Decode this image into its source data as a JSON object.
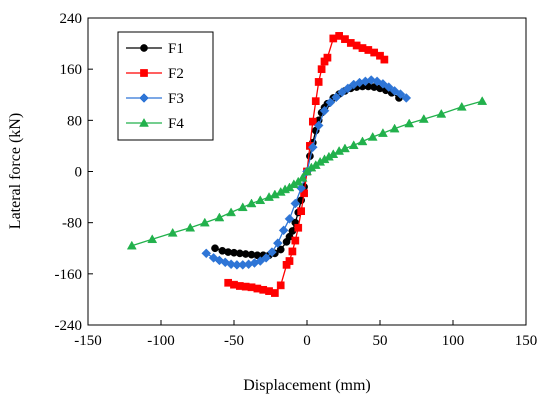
{
  "chart_data": {
    "type": "line",
    "title": "",
    "xlabel": "Displacement (mm)",
    "ylabel": "Lateral force (kN)",
    "xlim": [
      -150,
      150
    ],
    "ylim": [
      -240,
      240
    ],
    "xticks": [
      -150,
      -100,
      -50,
      0,
      50,
      100,
      150
    ],
    "yticks": [
      -240,
      -160,
      -80,
      0,
      80,
      160,
      240
    ],
    "xtick_labels": [
      "-150",
      "-100",
      "-50",
      "0",
      "50",
      "100",
      "150"
    ],
    "ytick_labels": [
      "-240",
      "-160",
      "-80",
      "0",
      "80",
      "160",
      "240"
    ],
    "grid": false,
    "legend_position": "top-left",
    "series": [
      {
        "name": "F1",
        "color": "#000000",
        "marker": "circle",
        "x": [
          -63,
          -58,
          -54,
          -50,
          -46,
          -42,
          -38,
          -34,
          -30,
          -26,
          -22,
          -18,
          -14,
          -12,
          -10,
          -8,
          -6,
          -4,
          -2,
          0,
          2,
          4,
          6,
          8,
          10,
          12,
          14,
          18,
          22,
          26,
          30,
          34,
          38,
          42,
          46,
          50,
          54,
          58,
          63
        ],
        "y": [
          -120,
          -124,
          -126,
          -127,
          -128,
          -129,
          -130,
          -131,
          -131,
          -131,
          -128,
          -122,
          -110,
          -102,
          -93,
          -80,
          -64,
          -45,
          -24,
          0,
          24,
          45,
          64,
          80,
          92,
          100,
          106,
          115,
          121,
          126,
          130,
          132,
          133,
          133,
          132,
          130,
          127,
          123,
          115
        ]
      },
      {
        "name": "F2",
        "color": "#ff0000",
        "marker": "square",
        "x": [
          -54,
          -50,
          -46,
          -42,
          -38,
          -34,
          -30,
          -26,
          -22,
          -18,
          -14,
          -12,
          -10,
          -8,
          -6,
          -4,
          -2,
          0,
          2,
          4,
          6,
          8,
          10,
          12,
          14,
          18,
          22,
          26,
          30,
          34,
          38,
          42,
          46,
          50,
          53
        ],
        "y": [
          -174,
          -177,
          -179,
          -180,
          -181,
          -183,
          -185,
          -187,
          -190,
          -178,
          -146,
          -140,
          -125,
          -108,
          -88,
          -62,
          -34,
          0,
          40,
          78,
          110,
          140,
          160,
          172,
          178,
          208,
          212,
          207,
          201,
          197,
          193,
          190,
          186,
          181,
          175
        ]
      },
      {
        "name": "F3",
        "color": "#2e75d6",
        "marker": "diamond",
        "x": [
          -69,
          -64,
          -60,
          -56,
          -52,
          -48,
          -44,
          -40,
          -36,
          -32,
          -28,
          -24,
          -20,
          -16,
          -12,
          -8,
          -4,
          0,
          4,
          8,
          12,
          16,
          20,
          24,
          28,
          32,
          36,
          40,
          44,
          48,
          52,
          56,
          60,
          64,
          68
        ],
        "y": [
          -128,
          -135,
          -139,
          -142,
          -145,
          -146,
          -146,
          -145,
          -143,
          -140,
          -135,
          -126,
          -112,
          -92,
          -74,
          -50,
          -26,
          0,
          38,
          72,
          95,
          108,
          116,
          124,
          130,
          136,
          139,
          141,
          143,
          141,
          137,
          132,
          126,
          121,
          115
        ]
      },
      {
        "name": "F4",
        "color": "#22b14c",
        "marker": "triangle",
        "x": [
          -120,
          -106,
          -92,
          -80,
          -70,
          -60,
          -52,
          -44,
          -38,
          -32,
          -26,
          -22,
          -18,
          -15,
          -12,
          -9,
          -6,
          -3,
          0,
          3,
          6,
          9,
          12,
          15,
          18,
          22,
          26,
          32,
          38,
          45,
          52,
          60,
          70,
          80,
          92,
          106,
          120
        ],
        "y": [
          -116,
          -106,
          -96,
          -88,
          -80,
          -72,
          -64,
          -56,
          -50,
          -45,
          -40,
          -36,
          -32,
          -28,
          -25,
          -20,
          -16,
          -10,
          0,
          6,
          10,
          15,
          19,
          23,
          27,
          32,
          36,
          41,
          47,
          54,
          60,
          67,
          75,
          82,
          90,
          101,
          110
        ]
      }
    ]
  }
}
